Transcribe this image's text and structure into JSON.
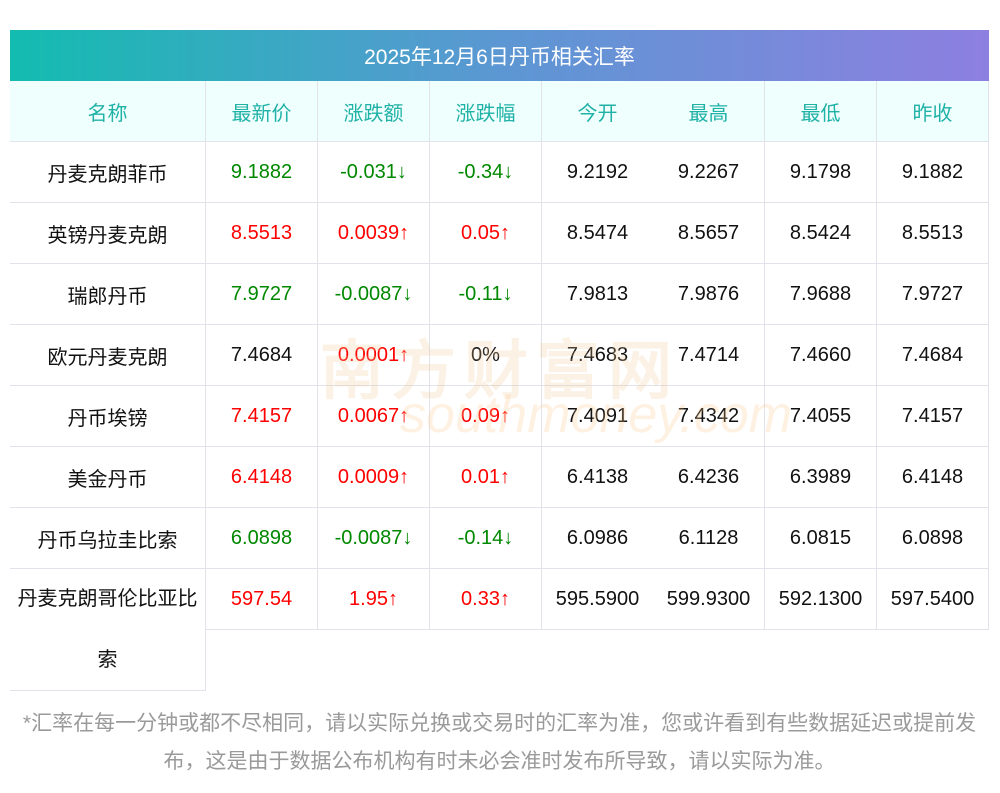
{
  "title": "2025年12月6日丹币相关汇率",
  "headers": [
    "名称",
    "最新价",
    "涨跌额",
    "涨跌幅",
    "今开",
    "最高",
    "最低",
    "昨收"
  ],
  "rows": [
    {
      "name": "丹麦克朗菲币",
      "latest": "9.1882",
      "change": "-0.031↓",
      "pct": "-0.34↓",
      "open": "9.2192",
      "high": "9.2267",
      "low": "9.1798",
      "prev": "9.1882",
      "dir": "down",
      "pctdir": "down"
    },
    {
      "name": "英镑丹麦克朗",
      "latest": "8.5513",
      "change": "0.0039↑",
      "pct": "0.05↑",
      "open": "8.5474",
      "high": "8.5657",
      "low": "8.5424",
      "prev": "8.5513",
      "dir": "up",
      "pctdir": "up"
    },
    {
      "name": "瑞郎丹币",
      "latest": "7.9727",
      "change": "-0.0087↓",
      "pct": "-0.11↓",
      "open": "7.9813",
      "high": "7.9876",
      "low": "7.9688",
      "prev": "7.9727",
      "dir": "down",
      "pctdir": "down"
    },
    {
      "name": "欧元丹麦克朗",
      "latest": "7.4684",
      "change": "0.0001↑",
      "pct": "0%",
      "open": "7.4683",
      "high": "7.4714",
      "low": "7.4660",
      "prev": "7.4684",
      "dir": "flat",
      "chdir": "up",
      "pctdir": "flat"
    },
    {
      "name": "丹币埃镑",
      "latest": "7.4157",
      "change": "0.0067↑",
      "pct": "0.09↑",
      "open": "7.4091",
      "high": "7.4342",
      "low": "7.4055",
      "prev": "7.4157",
      "dir": "up",
      "pctdir": "up"
    },
    {
      "name": "美金丹币",
      "latest": "6.4148",
      "change": "0.0009↑",
      "pct": "0.01↑",
      "open": "6.4138",
      "high": "6.4236",
      "low": "6.3989",
      "prev": "6.4148",
      "dir": "up",
      "pctdir": "up"
    },
    {
      "name": "丹币乌拉圭比索",
      "latest": "6.0898",
      "change": "-0.0087↓",
      "pct": "-0.14↓",
      "open": "6.0986",
      "high": "6.1128",
      "low": "6.0815",
      "prev": "6.0898",
      "dir": "down",
      "pctdir": "down"
    },
    {
      "name": "丹麦克朗哥伦比亚比索",
      "latest": "597.54",
      "change": "1.95↑",
      "pct": "0.33↑",
      "open": "595.5900",
      "high": "599.9300",
      "low": "592.1300",
      "prev": "597.5400",
      "dir": "up",
      "pctdir": "up"
    }
  ],
  "watermark": "南方财富网 southmoney.com",
  "footer": "*汇率在每一分钟或都不尽相同，请以实际兑换或交易时的汇率为准，您或许看到有些数据延迟或提前发布，这是由于数据公布机构有时未必会准时发布所导致，请以实际为准。",
  "colors": {
    "up": "#ff0000",
    "down": "#008000",
    "header": "#20b2a6"
  }
}
